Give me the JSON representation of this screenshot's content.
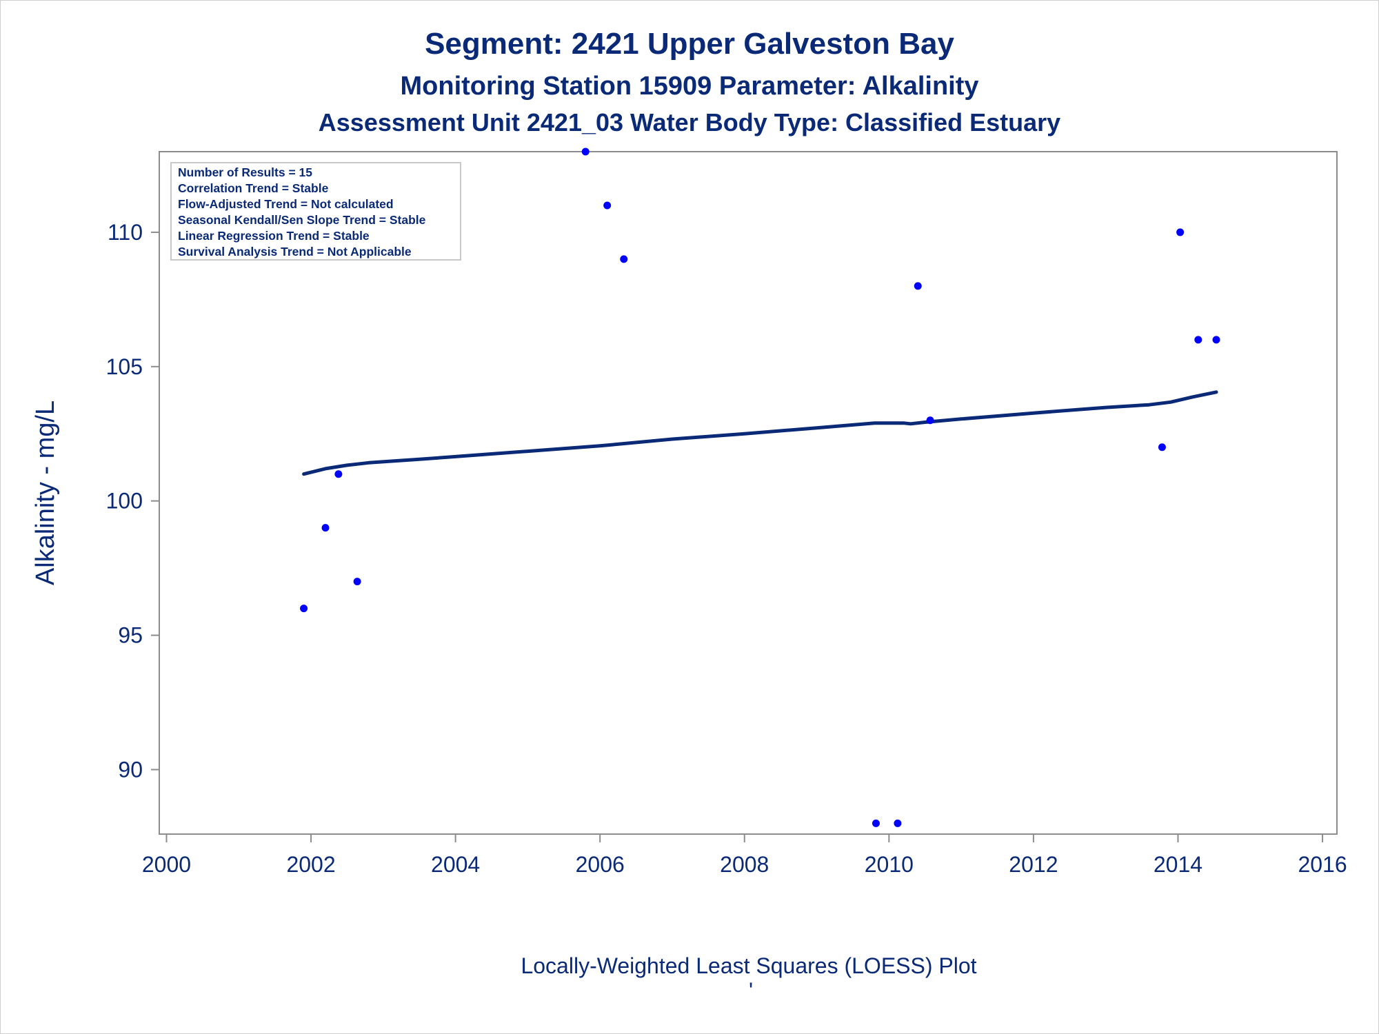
{
  "chart_data": {
    "type": "scatter",
    "title": "Segment: 2421  Upper Galveston Bay",
    "subtitle": "Monitoring Station 15909 Parameter: Alkalinity",
    "subtitle2": "Assessment Unit 2421_03   Water Body Type: Classified Estuary",
    "ylabel": "Alkalinity - mg/L",
    "xlabel": "",
    "footnote": "Locally-Weighted Least Squares (LOESS) Plot",
    "footnote_mark": "'",
    "xlim": [
      1999.9,
      2016.2
    ],
    "ylim": [
      87.6,
      113.0
    ],
    "x_ticks": [
      2000,
      2002,
      2004,
      2006,
      2008,
      2010,
      2012,
      2014,
      2016
    ],
    "y_ticks": [
      90,
      95,
      100,
      105,
      110
    ],
    "grid": false,
    "legend": "none",
    "info_box": {
      "placement": "top-left",
      "lines": [
        "Number of Results = 15",
        "Correlation Trend = Stable",
        "Flow-Adjusted Trend = Not calculated",
        "Seasonal Kendall/Sen Slope Trend = Stable",
        "Linear Regression Trend = Stable",
        "Survival Analysis Trend = Not Applicable"
      ]
    },
    "series": [
      {
        "kind": "points",
        "x": [
          2001.9,
          2002.2,
          2002.38,
          2002.64,
          2005.8,
          2006.1,
          2006.33,
          2009.82,
          2010.12,
          2010.4,
          2010.57,
          2013.78,
          2014.03,
          2014.28,
          2014.53
        ],
        "y": [
          96,
          99,
          101,
          97,
          113,
          111,
          109,
          88,
          88,
          108,
          103,
          102,
          110,
          106,
          106
        ],
        "color": "#0000ff"
      },
      {
        "kind": "loess",
        "x": [
          2001.9,
          2002.2,
          2002.5,
          2002.8,
          2003.5,
          2004,
          2005,
          2006,
          2007,
          2008,
          2009,
          2009.8,
          2010.2,
          2010.3,
          2010.5,
          2011,
          2012,
          2013,
          2013.6,
          2013.9,
          2014.2,
          2014.53
        ],
        "y": [
          101.0,
          101.2,
          101.33,
          101.42,
          101.55,
          101.65,
          101.85,
          102.05,
          102.3,
          102.5,
          102.72,
          102.9,
          102.9,
          102.87,
          102.93,
          103.05,
          103.27,
          103.48,
          103.58,
          103.68,
          103.87,
          104.05
        ],
        "color": "#0a2a78"
      }
    ]
  },
  "colors": {
    "text": "#0a2a78",
    "points": "#0000ff",
    "line": "#0a2a78",
    "axis": "#8c8c8c"
  }
}
